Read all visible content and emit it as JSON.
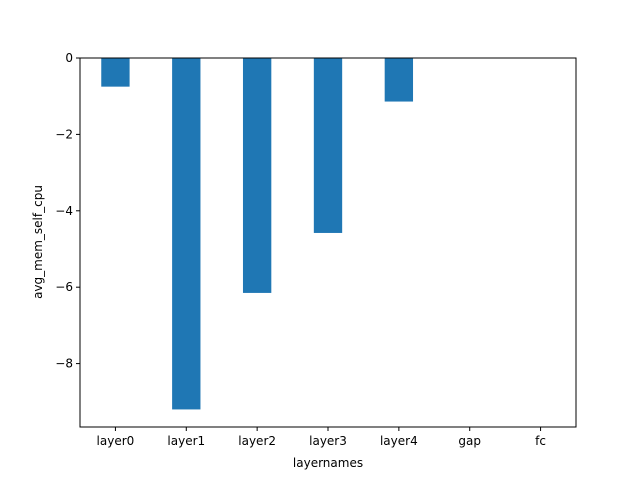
{
  "chart_data": {
    "type": "bar",
    "title": "",
    "xlabel": "layernames",
    "ylabel": "avg_mem_self_cpu",
    "categories": [
      "layer0",
      "layer1",
      "layer2",
      "layer3",
      "layer4",
      "gap",
      "fc"
    ],
    "values": [
      -0.75,
      -9.2,
      -6.15,
      -4.58,
      -1.14,
      0,
      0
    ],
    "ylim": [
      -9.66,
      0
    ],
    "yticks": [
      0,
      -2,
      -4,
      -6,
      -8
    ],
    "ytick_labels": [
      "0",
      "−2",
      "−4",
      "−6",
      "−8"
    ],
    "grid": false,
    "legend": "none",
    "bar_color": "#1f77b4"
  }
}
